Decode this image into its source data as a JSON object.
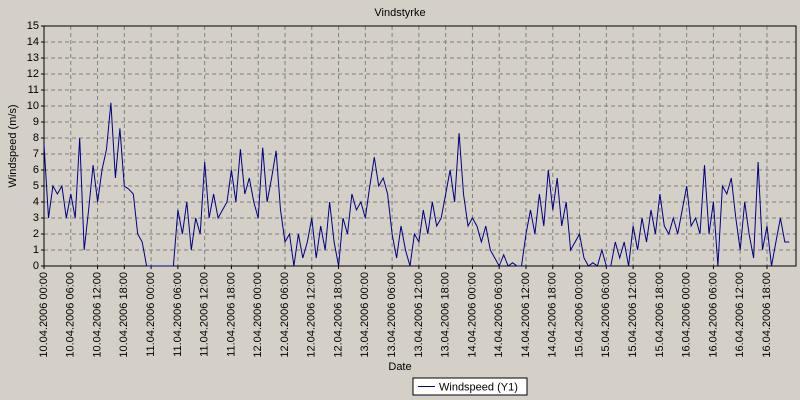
{
  "chart_data": {
    "type": "line",
    "title": "Vindstyrke",
    "x_label": "Date",
    "y_label": "Windspeed (m/s)",
    "categories": [
      "10.04.2006 00:00",
      null,
      null,
      null,
      null,
      null,
      "10.04.2006 06:00",
      null,
      null,
      null,
      null,
      null,
      "10.04.2006 12:00",
      null,
      null,
      null,
      null,
      null,
      "10.04.2006 18:00",
      null,
      null,
      null,
      null,
      null,
      "11.04.2006 00:00",
      null,
      null,
      null,
      null,
      null,
      "11.04.2006 06:00",
      null,
      null,
      null,
      null,
      null,
      "11.04.2006 12:00",
      null,
      null,
      null,
      null,
      null,
      "11.04.2006 18:00",
      null,
      null,
      null,
      null,
      null,
      "12.04.2006 00:00",
      null,
      null,
      null,
      null,
      null,
      "12.04.2006 06:00",
      null,
      null,
      null,
      null,
      null,
      "12.04.2006 12:00",
      null,
      null,
      null,
      null,
      null,
      "12.04.2006 18:00",
      null,
      null,
      null,
      null,
      null,
      "13.04.2006 00:00",
      null,
      null,
      null,
      null,
      null,
      "13.04.2006 06:00",
      null,
      null,
      null,
      null,
      null,
      "13.04.2006 12:00",
      null,
      null,
      null,
      null,
      null,
      "13.04.2006 18:00",
      null,
      null,
      null,
      null,
      null,
      "14.04.2006 00:00",
      null,
      null,
      null,
      null,
      null,
      "14.04.2006 06:00",
      null,
      null,
      null,
      null,
      null,
      "14.04.2006 12:00",
      null,
      null,
      null,
      null,
      null,
      "14.04.2006 18:00",
      null,
      null,
      null,
      null,
      null,
      "15.04.2006 00:00",
      null,
      null,
      null,
      null,
      null,
      "15.04.2006 06:00",
      null,
      null,
      null,
      null,
      null,
      "15.04.2006 12:00",
      null,
      null,
      null,
      null,
      null,
      "15.04.2006 18:00",
      null,
      null,
      null,
      null,
      null,
      "16.04.2006 00:00",
      null,
      null,
      null,
      null,
      null,
      "16.04.2006 06:00",
      null,
      null,
      null,
      null,
      null,
      "16.04.2006 12:00",
      null,
      null,
      null,
      null,
      null,
      "16.04.2006 18:00",
      null,
      null,
      null,
      null,
      null
    ],
    "series": [
      {
        "name": "Windspeed (Y1)",
        "color": "#000080",
        "values": [
          7.6,
          3,
          5,
          4.5,
          5,
          3,
          4.5,
          3,
          8,
          1,
          3.5,
          6.3,
          4,
          6,
          7.3,
          10.2,
          5.5,
          8.6,
          5,
          4.8,
          4.5,
          2,
          1.5,
          0,
          0,
          0,
          0,
          0,
          0,
          0,
          3.5,
          2,
          4,
          1,
          3,
          2,
          6.5,
          3,
          4.5,
          3,
          3.5,
          4,
          6,
          4,
          7.3,
          4.5,
          5.5,
          4,
          3,
          7.4,
          4,
          5.5,
          7.2,
          3.5,
          1.5,
          2,
          0,
          2,
          0.5,
          1.5,
          3,
          0.5,
          2.5,
          1,
          4,
          1.5,
          0,
          3,
          2,
          4.5,
          3.5,
          4,
          3,
          5,
          6.8,
          5,
          5.5,
          4.5,
          2,
          0.5,
          2.5,
          1,
          0,
          2,
          1.5,
          3.5,
          2,
          4,
          2.5,
          3,
          4.5,
          6,
          4,
          8.3,
          4.5,
          2.5,
          3,
          2.5,
          1.5,
          2.5,
          1,
          0.5,
          0,
          0.7,
          0,
          0.2,
          0,
          0,
          2,
          3.5,
          2,
          4.5,
          2.5,
          6,
          3.5,
          5.5,
          2.5,
          4,
          1,
          1.5,
          2,
          0.5,
          0,
          0.2,
          0,
          1,
          0,
          0,
          1.5,
          0.5,
          1.5,
          0,
          2.5,
          1,
          3,
          1.5,
          3.5,
          2,
          4.5,
          2.5,
          2,
          3,
          2,
          3.5,
          5,
          2.5,
          3,
          2,
          6.3,
          2,
          4,
          0,
          5,
          4.5,
          5.5,
          3,
          1,
          4,
          2,
          0.5,
          6.5,
          1,
          2.5,
          0,
          1.5,
          3,
          1.5,
          1.5
        ]
      }
    ],
    "ylim": [
      0,
      15
    ],
    "yticks": [
      0,
      1,
      2,
      3,
      4,
      5,
      6,
      7,
      8,
      9,
      10,
      11,
      12,
      13,
      14,
      15
    ],
    "grid": true,
    "legend": "bottom"
  }
}
